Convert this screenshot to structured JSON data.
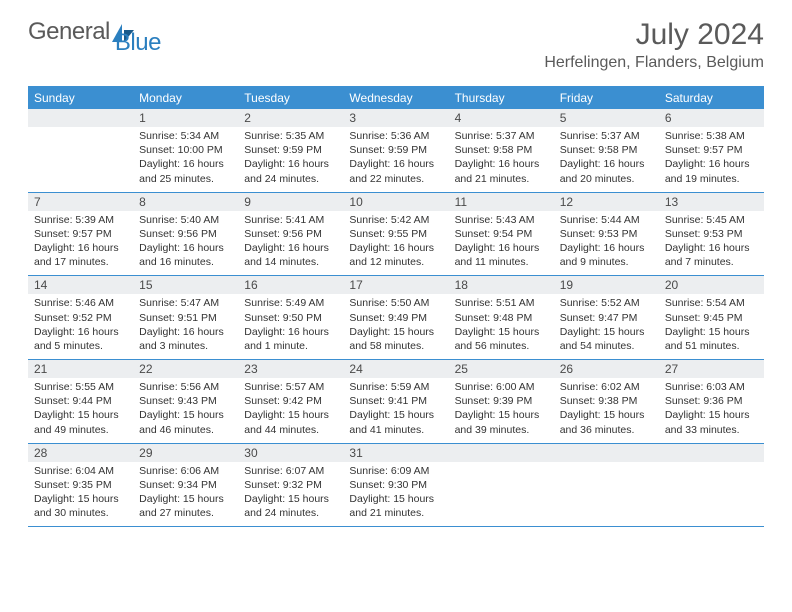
{
  "logo": {
    "text1": "General",
    "text2": "Blue"
  },
  "title": "July 2024",
  "location": "Herfelingen, Flanders, Belgium",
  "headerRow": {
    "bg": "#3b8fd1",
    "fg": "#ffffff"
  },
  "accent_color": "#3b8fd1",
  "daynum_bg": "#eceef0",
  "dayNames": [
    "Sunday",
    "Monday",
    "Tuesday",
    "Wednesday",
    "Thursday",
    "Friday",
    "Saturday"
  ],
  "weeks": [
    [
      {
        "n": "",
        "sunrise": "",
        "sunset": "",
        "daylight": ""
      },
      {
        "n": "1",
        "sunrise": "5:34 AM",
        "sunset": "10:00 PM",
        "daylight": "16 hours and 25 minutes."
      },
      {
        "n": "2",
        "sunrise": "5:35 AM",
        "sunset": "9:59 PM",
        "daylight": "16 hours and 24 minutes."
      },
      {
        "n": "3",
        "sunrise": "5:36 AM",
        "sunset": "9:59 PM",
        "daylight": "16 hours and 22 minutes."
      },
      {
        "n": "4",
        "sunrise": "5:37 AM",
        "sunset": "9:58 PM",
        "daylight": "16 hours and 21 minutes."
      },
      {
        "n": "5",
        "sunrise": "5:37 AM",
        "sunset": "9:58 PM",
        "daylight": "16 hours and 20 minutes."
      },
      {
        "n": "6",
        "sunrise": "5:38 AM",
        "sunset": "9:57 PM",
        "daylight": "16 hours and 19 minutes."
      }
    ],
    [
      {
        "n": "7",
        "sunrise": "5:39 AM",
        "sunset": "9:57 PM",
        "daylight": "16 hours and 17 minutes."
      },
      {
        "n": "8",
        "sunrise": "5:40 AM",
        "sunset": "9:56 PM",
        "daylight": "16 hours and 16 minutes."
      },
      {
        "n": "9",
        "sunrise": "5:41 AM",
        "sunset": "9:56 PM",
        "daylight": "16 hours and 14 minutes."
      },
      {
        "n": "10",
        "sunrise": "5:42 AM",
        "sunset": "9:55 PM",
        "daylight": "16 hours and 12 minutes."
      },
      {
        "n": "11",
        "sunrise": "5:43 AM",
        "sunset": "9:54 PM",
        "daylight": "16 hours and 11 minutes."
      },
      {
        "n": "12",
        "sunrise": "5:44 AM",
        "sunset": "9:53 PM",
        "daylight": "16 hours and 9 minutes."
      },
      {
        "n": "13",
        "sunrise": "5:45 AM",
        "sunset": "9:53 PM",
        "daylight": "16 hours and 7 minutes."
      }
    ],
    [
      {
        "n": "14",
        "sunrise": "5:46 AM",
        "sunset": "9:52 PM",
        "daylight": "16 hours and 5 minutes."
      },
      {
        "n": "15",
        "sunrise": "5:47 AM",
        "sunset": "9:51 PM",
        "daylight": "16 hours and 3 minutes."
      },
      {
        "n": "16",
        "sunrise": "5:49 AM",
        "sunset": "9:50 PM",
        "daylight": "16 hours and 1 minute."
      },
      {
        "n": "17",
        "sunrise": "5:50 AM",
        "sunset": "9:49 PM",
        "daylight": "15 hours and 58 minutes."
      },
      {
        "n": "18",
        "sunrise": "5:51 AM",
        "sunset": "9:48 PM",
        "daylight": "15 hours and 56 minutes."
      },
      {
        "n": "19",
        "sunrise": "5:52 AM",
        "sunset": "9:47 PM",
        "daylight": "15 hours and 54 minutes."
      },
      {
        "n": "20",
        "sunrise": "5:54 AM",
        "sunset": "9:45 PM",
        "daylight": "15 hours and 51 minutes."
      }
    ],
    [
      {
        "n": "21",
        "sunrise": "5:55 AM",
        "sunset": "9:44 PM",
        "daylight": "15 hours and 49 minutes."
      },
      {
        "n": "22",
        "sunrise": "5:56 AM",
        "sunset": "9:43 PM",
        "daylight": "15 hours and 46 minutes."
      },
      {
        "n": "23",
        "sunrise": "5:57 AM",
        "sunset": "9:42 PM",
        "daylight": "15 hours and 44 minutes."
      },
      {
        "n": "24",
        "sunrise": "5:59 AM",
        "sunset": "9:41 PM",
        "daylight": "15 hours and 41 minutes."
      },
      {
        "n": "25",
        "sunrise": "6:00 AM",
        "sunset": "9:39 PM",
        "daylight": "15 hours and 39 minutes."
      },
      {
        "n": "26",
        "sunrise": "6:02 AM",
        "sunset": "9:38 PM",
        "daylight": "15 hours and 36 minutes."
      },
      {
        "n": "27",
        "sunrise": "6:03 AM",
        "sunset": "9:36 PM",
        "daylight": "15 hours and 33 minutes."
      }
    ],
    [
      {
        "n": "28",
        "sunrise": "6:04 AM",
        "sunset": "9:35 PM",
        "daylight": "15 hours and 30 minutes."
      },
      {
        "n": "29",
        "sunrise": "6:06 AM",
        "sunset": "9:34 PM",
        "daylight": "15 hours and 27 minutes."
      },
      {
        "n": "30",
        "sunrise": "6:07 AM",
        "sunset": "9:32 PM",
        "daylight": "15 hours and 24 minutes."
      },
      {
        "n": "31",
        "sunrise": "6:09 AM",
        "sunset": "9:30 PM",
        "daylight": "15 hours and 21 minutes."
      },
      {
        "n": "",
        "sunrise": "",
        "sunset": "",
        "daylight": ""
      },
      {
        "n": "",
        "sunrise": "",
        "sunset": "",
        "daylight": ""
      },
      {
        "n": "",
        "sunrise": "",
        "sunset": "",
        "daylight": ""
      }
    ]
  ],
  "labels": {
    "sunrise": "Sunrise:",
    "sunset": "Sunset:",
    "daylight": "Daylight:"
  }
}
